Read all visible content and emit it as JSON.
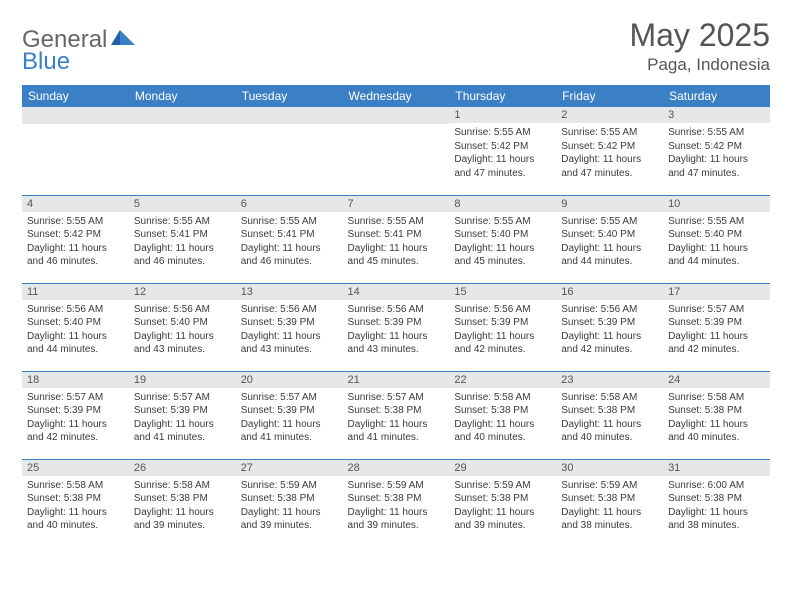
{
  "brand": {
    "part1": "General",
    "part2": "Blue"
  },
  "title": "May 2025",
  "subtitle": "Paga, Indonesia",
  "colors": {
    "header_bg": "#3b7fc4",
    "header_text": "#ffffff",
    "daynum_bg": "#e6e7e8",
    "text": "#333333",
    "rule": "#3b7fc4"
  },
  "day_headers": [
    "Sunday",
    "Monday",
    "Tuesday",
    "Wednesday",
    "Thursday",
    "Friday",
    "Saturday"
  ],
  "weeks": [
    [
      {
        "n": "",
        "sr": "",
        "ss": "",
        "dl": ""
      },
      {
        "n": "",
        "sr": "",
        "ss": "",
        "dl": ""
      },
      {
        "n": "",
        "sr": "",
        "ss": "",
        "dl": ""
      },
      {
        "n": "",
        "sr": "",
        "ss": "",
        "dl": ""
      },
      {
        "n": "1",
        "sr": "Sunrise: 5:55 AM",
        "ss": "Sunset: 5:42 PM",
        "dl": "Daylight: 11 hours and 47 minutes."
      },
      {
        "n": "2",
        "sr": "Sunrise: 5:55 AM",
        "ss": "Sunset: 5:42 PM",
        "dl": "Daylight: 11 hours and 47 minutes."
      },
      {
        "n": "3",
        "sr": "Sunrise: 5:55 AM",
        "ss": "Sunset: 5:42 PM",
        "dl": "Daylight: 11 hours and 47 minutes."
      }
    ],
    [
      {
        "n": "4",
        "sr": "Sunrise: 5:55 AM",
        "ss": "Sunset: 5:42 PM",
        "dl": "Daylight: 11 hours and 46 minutes."
      },
      {
        "n": "5",
        "sr": "Sunrise: 5:55 AM",
        "ss": "Sunset: 5:41 PM",
        "dl": "Daylight: 11 hours and 46 minutes."
      },
      {
        "n": "6",
        "sr": "Sunrise: 5:55 AM",
        "ss": "Sunset: 5:41 PM",
        "dl": "Daylight: 11 hours and 46 minutes."
      },
      {
        "n": "7",
        "sr": "Sunrise: 5:55 AM",
        "ss": "Sunset: 5:41 PM",
        "dl": "Daylight: 11 hours and 45 minutes."
      },
      {
        "n": "8",
        "sr": "Sunrise: 5:55 AM",
        "ss": "Sunset: 5:40 PM",
        "dl": "Daylight: 11 hours and 45 minutes."
      },
      {
        "n": "9",
        "sr": "Sunrise: 5:55 AM",
        "ss": "Sunset: 5:40 PM",
        "dl": "Daylight: 11 hours and 44 minutes."
      },
      {
        "n": "10",
        "sr": "Sunrise: 5:55 AM",
        "ss": "Sunset: 5:40 PM",
        "dl": "Daylight: 11 hours and 44 minutes."
      }
    ],
    [
      {
        "n": "11",
        "sr": "Sunrise: 5:56 AM",
        "ss": "Sunset: 5:40 PM",
        "dl": "Daylight: 11 hours and 44 minutes."
      },
      {
        "n": "12",
        "sr": "Sunrise: 5:56 AM",
        "ss": "Sunset: 5:40 PM",
        "dl": "Daylight: 11 hours and 43 minutes."
      },
      {
        "n": "13",
        "sr": "Sunrise: 5:56 AM",
        "ss": "Sunset: 5:39 PM",
        "dl": "Daylight: 11 hours and 43 minutes."
      },
      {
        "n": "14",
        "sr": "Sunrise: 5:56 AM",
        "ss": "Sunset: 5:39 PM",
        "dl": "Daylight: 11 hours and 43 minutes."
      },
      {
        "n": "15",
        "sr": "Sunrise: 5:56 AM",
        "ss": "Sunset: 5:39 PM",
        "dl": "Daylight: 11 hours and 42 minutes."
      },
      {
        "n": "16",
        "sr": "Sunrise: 5:56 AM",
        "ss": "Sunset: 5:39 PM",
        "dl": "Daylight: 11 hours and 42 minutes."
      },
      {
        "n": "17",
        "sr": "Sunrise: 5:57 AM",
        "ss": "Sunset: 5:39 PM",
        "dl": "Daylight: 11 hours and 42 minutes."
      }
    ],
    [
      {
        "n": "18",
        "sr": "Sunrise: 5:57 AM",
        "ss": "Sunset: 5:39 PM",
        "dl": "Daylight: 11 hours and 42 minutes."
      },
      {
        "n": "19",
        "sr": "Sunrise: 5:57 AM",
        "ss": "Sunset: 5:39 PM",
        "dl": "Daylight: 11 hours and 41 minutes."
      },
      {
        "n": "20",
        "sr": "Sunrise: 5:57 AM",
        "ss": "Sunset: 5:39 PM",
        "dl": "Daylight: 11 hours and 41 minutes."
      },
      {
        "n": "21",
        "sr": "Sunrise: 5:57 AM",
        "ss": "Sunset: 5:38 PM",
        "dl": "Daylight: 11 hours and 41 minutes."
      },
      {
        "n": "22",
        "sr": "Sunrise: 5:58 AM",
        "ss": "Sunset: 5:38 PM",
        "dl": "Daylight: 11 hours and 40 minutes."
      },
      {
        "n": "23",
        "sr": "Sunrise: 5:58 AM",
        "ss": "Sunset: 5:38 PM",
        "dl": "Daylight: 11 hours and 40 minutes."
      },
      {
        "n": "24",
        "sr": "Sunrise: 5:58 AM",
        "ss": "Sunset: 5:38 PM",
        "dl": "Daylight: 11 hours and 40 minutes."
      }
    ],
    [
      {
        "n": "25",
        "sr": "Sunrise: 5:58 AM",
        "ss": "Sunset: 5:38 PM",
        "dl": "Daylight: 11 hours and 40 minutes."
      },
      {
        "n": "26",
        "sr": "Sunrise: 5:58 AM",
        "ss": "Sunset: 5:38 PM",
        "dl": "Daylight: 11 hours and 39 minutes."
      },
      {
        "n": "27",
        "sr": "Sunrise: 5:59 AM",
        "ss": "Sunset: 5:38 PM",
        "dl": "Daylight: 11 hours and 39 minutes."
      },
      {
        "n": "28",
        "sr": "Sunrise: 5:59 AM",
        "ss": "Sunset: 5:38 PM",
        "dl": "Daylight: 11 hours and 39 minutes."
      },
      {
        "n": "29",
        "sr": "Sunrise: 5:59 AM",
        "ss": "Sunset: 5:38 PM",
        "dl": "Daylight: 11 hours and 39 minutes."
      },
      {
        "n": "30",
        "sr": "Sunrise: 5:59 AM",
        "ss": "Sunset: 5:38 PM",
        "dl": "Daylight: 11 hours and 38 minutes."
      },
      {
        "n": "31",
        "sr": "Sunrise: 6:00 AM",
        "ss": "Sunset: 5:38 PM",
        "dl": "Daylight: 11 hours and 38 minutes."
      }
    ]
  ]
}
